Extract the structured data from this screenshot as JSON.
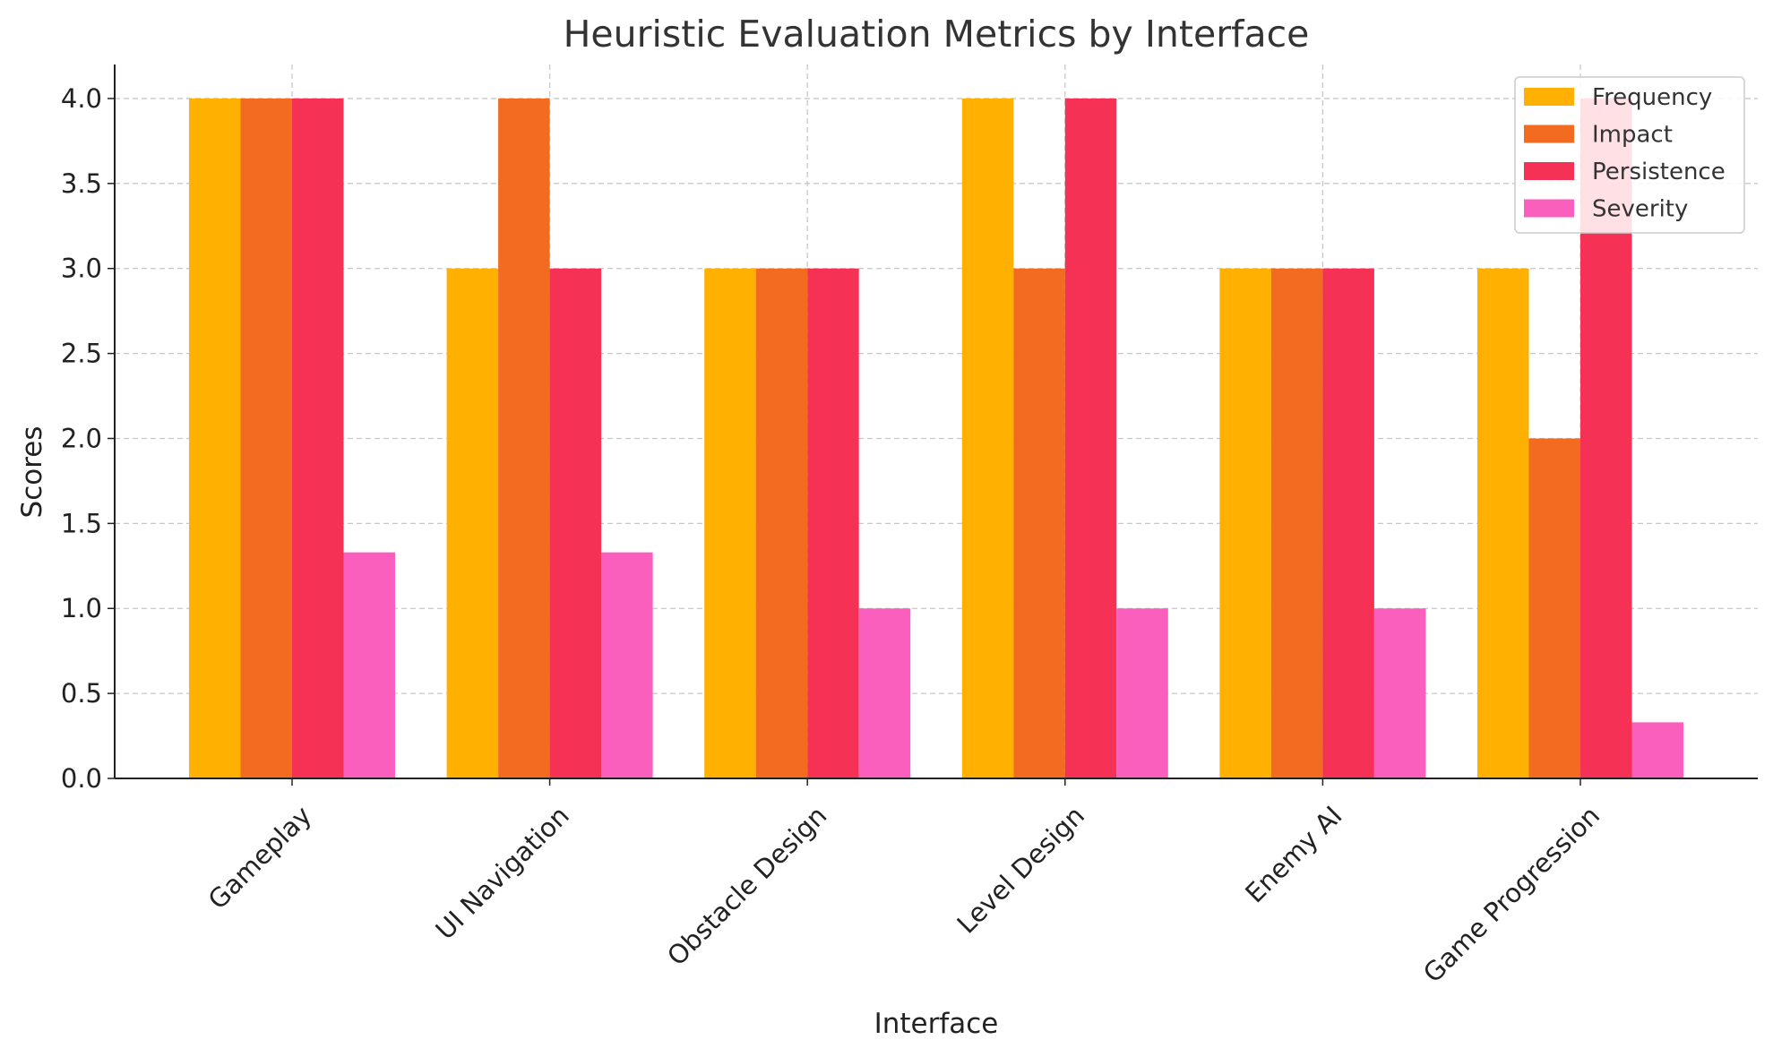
{
  "chart_data": {
    "type": "bar",
    "title": "Heuristic Evaluation Metrics by Interface",
    "xlabel": "Interface",
    "ylabel": "Scores",
    "categories": [
      "Gameplay",
      "UI Navigation",
      "Obstacle Design",
      "Level Design",
      "Enemy AI",
      "Game Progression"
    ],
    "series": [
      {
        "name": "Frequency",
        "color": "#FFB000",
        "values": [
          4,
          3,
          3,
          4,
          3,
          3
        ]
      },
      {
        "name": "Impact",
        "color": "#F26B21",
        "values": [
          4,
          4,
          3,
          3,
          3,
          2
        ]
      },
      {
        "name": "Persistence",
        "color": "#F53255",
        "values": [
          4,
          3,
          3,
          4,
          3,
          4
        ]
      },
      {
        "name": "Severity",
        "color": "#FA5FBE",
        "values": [
          1.33,
          1.33,
          1.0,
          1.0,
          1.0,
          0.33
        ]
      }
    ],
    "ylim": [
      0,
      4.2
    ],
    "yticks": [
      "0.0",
      "0.5",
      "1.0",
      "1.5",
      "2.0",
      "2.5",
      "3.0",
      "3.5",
      "4.0"
    ],
    "grid": true,
    "legend_position": "top-right"
  }
}
